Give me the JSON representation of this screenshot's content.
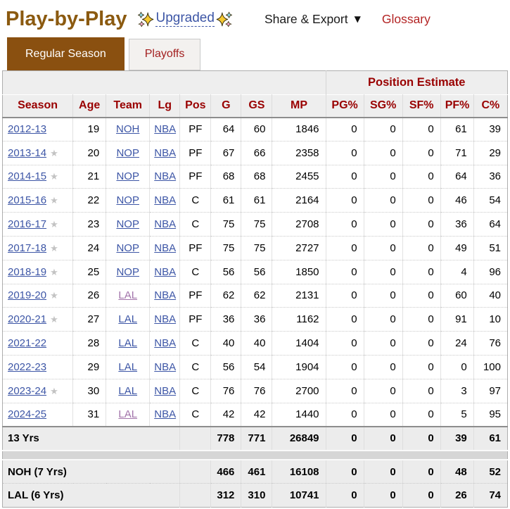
{
  "page": {
    "title": "Play-by-Play",
    "upgraded_label": "Upgraded",
    "share_export_label": "Share & Export",
    "dropdown_arrow": "▼",
    "glossary_label": "Glossary",
    "star_glyph": "★"
  },
  "tabs": {
    "regular_season": "Regular Season",
    "playoffs": "Playoffs"
  },
  "colors": {
    "title_brown": "#8b5a10",
    "active_tab_brown": "#8a5010",
    "header_red": "#990000",
    "glossary_red": "#b32424",
    "link_blue": "#3d56a6",
    "visited_purple": "#a274aa",
    "header_bg": "#eeeeee",
    "total_bg": "#ececec",
    "spacer_bg": "#d6d6d6",
    "star_gray": "#c3c3c3"
  },
  "table": {
    "group_header": "Position Estimate",
    "columns": [
      "Season",
      "Age",
      "Team",
      "Lg",
      "Pos",
      "G",
      "GS",
      "MP",
      "PG%",
      "SG%",
      "SF%",
      "PF%",
      "C%"
    ],
    "rows": [
      {
        "season": "2012-13",
        "star": false,
        "age": 19,
        "team": "NOH",
        "team_visited": false,
        "lg": "NBA",
        "pos": "PF",
        "g": 64,
        "gs": 60,
        "mp": 1846,
        "pg": 0,
        "sg": 0,
        "sf": 0,
        "pf": 61,
        "c": 39
      },
      {
        "season": "2013-14",
        "star": true,
        "age": 20,
        "team": "NOP",
        "team_visited": false,
        "lg": "NBA",
        "pos": "PF",
        "g": 67,
        "gs": 66,
        "mp": 2358,
        "pg": 0,
        "sg": 0,
        "sf": 0,
        "pf": 71,
        "c": 29
      },
      {
        "season": "2014-15",
        "star": true,
        "age": 21,
        "team": "NOP",
        "team_visited": false,
        "lg": "NBA",
        "pos": "PF",
        "g": 68,
        "gs": 68,
        "mp": 2455,
        "pg": 0,
        "sg": 0,
        "sf": 0,
        "pf": 64,
        "c": 36
      },
      {
        "season": "2015-16",
        "star": true,
        "age": 22,
        "team": "NOP",
        "team_visited": false,
        "lg": "NBA",
        "pos": "C",
        "g": 61,
        "gs": 61,
        "mp": 2164,
        "pg": 0,
        "sg": 0,
        "sf": 0,
        "pf": 46,
        "c": 54
      },
      {
        "season": "2016-17",
        "star": true,
        "age": 23,
        "team": "NOP",
        "team_visited": false,
        "lg": "NBA",
        "pos": "C",
        "g": 75,
        "gs": 75,
        "mp": 2708,
        "pg": 0,
        "sg": 0,
        "sf": 0,
        "pf": 36,
        "c": 64
      },
      {
        "season": "2017-18",
        "star": true,
        "age": 24,
        "team": "NOP",
        "team_visited": false,
        "lg": "NBA",
        "pos": "PF",
        "g": 75,
        "gs": 75,
        "mp": 2727,
        "pg": 0,
        "sg": 0,
        "sf": 0,
        "pf": 49,
        "c": 51
      },
      {
        "season": "2018-19",
        "star": true,
        "age": 25,
        "team": "NOP",
        "team_visited": false,
        "lg": "NBA",
        "pos": "C",
        "g": 56,
        "gs": 56,
        "mp": 1850,
        "pg": 0,
        "sg": 0,
        "sf": 0,
        "pf": 4,
        "c": 96
      },
      {
        "season": "2019-20",
        "star": true,
        "age": 26,
        "team": "LAL",
        "team_visited": true,
        "lg": "NBA",
        "pos": "PF",
        "g": 62,
        "gs": 62,
        "mp": 2131,
        "pg": 0,
        "sg": 0,
        "sf": 0,
        "pf": 60,
        "c": 40
      },
      {
        "season": "2020-21",
        "star": true,
        "age": 27,
        "team": "LAL",
        "team_visited": false,
        "lg": "NBA",
        "pos": "PF",
        "g": 36,
        "gs": 36,
        "mp": 1162,
        "pg": 0,
        "sg": 0,
        "sf": 0,
        "pf": 91,
        "c": 10
      },
      {
        "season": "2021-22",
        "star": false,
        "age": 28,
        "team": "LAL",
        "team_visited": false,
        "lg": "NBA",
        "pos": "C",
        "g": 40,
        "gs": 40,
        "mp": 1404,
        "pg": 0,
        "sg": 0,
        "sf": 0,
        "pf": 24,
        "c": 76
      },
      {
        "season": "2022-23",
        "star": false,
        "age": 29,
        "team": "LAL",
        "team_visited": false,
        "lg": "NBA",
        "pos": "C",
        "g": 56,
        "gs": 54,
        "mp": 1904,
        "pg": 0,
        "sg": 0,
        "sf": 0,
        "pf": 0,
        "c": 100
      },
      {
        "season": "2023-24",
        "star": true,
        "age": 30,
        "team": "LAL",
        "team_visited": false,
        "lg": "NBA",
        "pos": "C",
        "g": 76,
        "gs": 76,
        "mp": 2700,
        "pg": 0,
        "sg": 0,
        "sf": 0,
        "pf": 3,
        "c": 97
      },
      {
        "season": "2024-25",
        "star": false,
        "age": 31,
        "team": "LAL",
        "team_visited": true,
        "lg": "NBA",
        "pos": "C",
        "g": 42,
        "gs": 42,
        "mp": 1440,
        "pg": 0,
        "sg": 0,
        "sf": 0,
        "pf": 5,
        "c": 95
      }
    ],
    "totals": [
      {
        "label": "13 Yrs",
        "g": 778,
        "gs": 771,
        "mp": 26849,
        "pg": 0,
        "sg": 0,
        "sf": 0,
        "pf": 39,
        "c": 61
      },
      {
        "label": "NOH (7 Yrs)",
        "g": 466,
        "gs": 461,
        "mp": 16108,
        "pg": 0,
        "sg": 0,
        "sf": 0,
        "pf": 48,
        "c": 52
      },
      {
        "label": "LAL (6 Yrs)",
        "g": 312,
        "gs": 310,
        "mp": 10741,
        "pg": 0,
        "sg": 0,
        "sf": 0,
        "pf": 26,
        "c": 74
      }
    ]
  }
}
